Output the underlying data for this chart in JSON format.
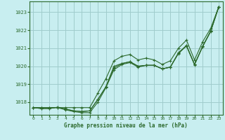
{
  "title": "Graphe pression niveau de la mer (hPa)",
  "background_color": "#c8eef0",
  "grid_color": "#a0cccc",
  "line_color": "#2d6a2d",
  "marker_color": "#2d6a2d",
  "xlim": [
    -0.5,
    23.5
  ],
  "ylim": [
    1017.3,
    1023.6
  ],
  "yticks": [
    1018,
    1019,
    1020,
    1021,
    1022,
    1023
  ],
  "xticks": [
    0,
    1,
    2,
    3,
    4,
    5,
    6,
    7,
    8,
    9,
    10,
    11,
    12,
    13,
    14,
    15,
    16,
    17,
    18,
    19,
    20,
    21,
    22,
    23
  ],
  "series": [
    [
      1017.7,
      1017.65,
      1017.65,
      1017.72,
      1017.62,
      1017.52,
      1017.48,
      1017.52,
      1018.15,
      1018.85,
      1019.9,
      1020.15,
      1020.25,
      1020.0,
      1020.05,
      1020.05,
      1019.85,
      1019.95,
      1020.7,
      1021.15,
      1020.1,
      1021.1,
      1021.95,
      1023.3
    ],
    [
      1017.7,
      1017.65,
      1017.65,
      1017.72,
      1017.62,
      1017.52,
      1017.48,
      1017.52,
      1018.15,
      1018.85,
      1020.0,
      1020.15,
      1020.25,
      1020.0,
      1020.05,
      1020.05,
      1019.85,
      1019.95,
      1020.75,
      1021.15,
      1020.1,
      1021.1,
      1021.95,
      1023.3
    ],
    [
      1017.7,
      1017.7,
      1017.7,
      1017.7,
      1017.58,
      1017.48,
      1017.42,
      1017.42,
      1018.0,
      1018.8,
      1019.8,
      1020.1,
      1020.2,
      1019.95,
      1020.05,
      1020.05,
      1019.85,
      1019.95,
      1020.72,
      1021.12,
      1020.08,
      1021.08,
      1021.92,
      1023.28
    ],
    [
      1017.7,
      1017.7,
      1017.7,
      1017.7,
      1017.7,
      1017.7,
      1017.7,
      1017.7,
      1018.5,
      1019.3,
      1020.3,
      1020.55,
      1020.65,
      1020.35,
      1020.45,
      1020.35,
      1020.1,
      1020.3,
      1021.0,
      1021.45,
      1020.35,
      1021.35,
      1022.1,
      1023.3
    ]
  ]
}
